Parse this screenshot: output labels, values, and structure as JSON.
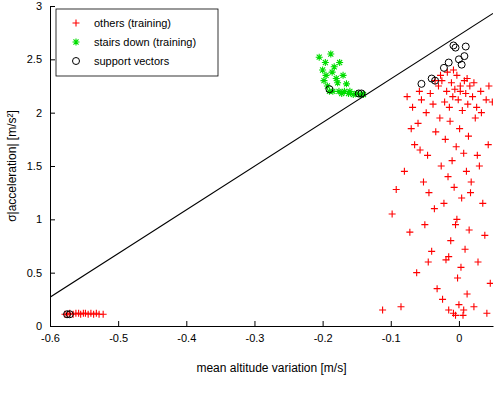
{
  "chart_data": {
    "type": "scatter",
    "xlabel": "mean altitude variation [m/s]",
    "ylabel": "σ|acceleration| [m/s²]",
    "xlim": [
      -0.6,
      0.05
    ],
    "ylim": [
      0,
      3
    ],
    "xticks": [
      -0.6,
      -0.5,
      -0.4,
      -0.3,
      -0.2,
      -0.1,
      0
    ],
    "yticks": [
      0,
      0.5,
      1,
      1.5,
      2,
      2.5,
      3
    ],
    "legend": "upper left",
    "series": [
      {
        "name": "others (training)",
        "color": "#ff0000",
        "marker": "plus",
        "x": [
          -0.578,
          -0.574,
          -0.571,
          -0.566,
          -0.562,
          -0.558,
          -0.555,
          -0.551,
          -0.548,
          -0.544,
          -0.54,
          -0.536,
          -0.532,
          -0.528,
          -0.522,
          -0.098,
          -0.092,
          -0.085,
          -0.08,
          -0.076,
          -0.072,
          -0.068,
          -0.065,
          -0.062,
          -0.06,
          -0.058,
          -0.055,
          -0.052,
          -0.05,
          -0.048,
          -0.046,
          -0.044,
          -0.042,
          -0.04,
          -0.038,
          -0.036,
          -0.034,
          -0.032,
          -0.03,
          -0.028,
          -0.026,
          -0.025,
          -0.024,
          -0.022,
          -0.021,
          -0.02,
          -0.019,
          -0.018,
          -0.016,
          -0.015,
          -0.014,
          -0.013,
          -0.012,
          -0.011,
          -0.01,
          -0.009,
          -0.008,
          -0.007,
          -0.006,
          -0.005,
          -0.004,
          -0.003,
          -0.002,
          -0.001,
          0,
          0.001,
          0.002,
          0.003,
          0.004,
          0.005,
          0.006,
          0.007,
          0.008,
          0.009,
          0.01,
          0.011,
          0.012,
          0.013,
          0.014,
          0.015,
          0.016,
          0.018,
          0.02,
          0.022,
          0.024,
          0.026,
          0.028,
          0.03,
          0.032,
          0.035,
          0.038,
          0.04,
          0.043,
          0.046,
          0.049,
          -0.035,
          -0.027,
          -0.017,
          -0.008,
          0.002,
          0.012,
          0.022,
          -0.045,
          -0.003,
          0.007,
          -0.112,
          -0.07,
          -0.057,
          0.033,
          0.041,
          -0.015,
          0.017,
          -0.005,
          0.027,
          0.044
        ],
        "values": [
          0.11,
          0.11,
          0.12,
          0.11,
          0.12,
          0.12,
          0.11,
          0.12,
          0.12,
          0.11,
          0.12,
          0.11,
          0.12,
          0.11,
          0.11,
          1.05,
          1.28,
          0.18,
          1.45,
          2.15,
          0.88,
          2.05,
          1.7,
          0.5,
          1.9,
          2.2,
          2.12,
          1.35,
          0.95,
          2.0,
          1.6,
          1.25,
          2.18,
          0.7,
          2.08,
          1.1,
          1.82,
          0.35,
          2.25,
          1.95,
          1.5,
          2.3,
          0.25,
          1.15,
          2.1,
          1.75,
          0.62,
          2.2,
          1.4,
          0.15,
          2.05,
          1.92,
          0.8,
          2.28,
          1.55,
          2.15,
          0.12,
          1.3,
          2.22,
          0.95,
          1.68,
          2.35,
          0.45,
          2.12,
          0.2,
          1.85,
          2.25,
          0.55,
          1.2,
          2.02,
          0.1,
          1.62,
          2.3,
          0.72,
          2.18,
          1.45,
          0.3,
          2.08,
          1.78,
          0.9,
          2.25,
          1.35,
          2.15,
          0.18,
          1.95,
          2.05,
          0.6,
          1.5,
          2.2,
          1.15,
          0.85,
          2.12,
          1.7,
          0.4,
          2.1,
          2.3,
          2.35,
          2.38,
          2.4,
          2.2,
          2.32,
          2.28,
          0.6,
          1.0,
          0.15,
          0.15,
          1.85,
          1.65,
          2.0,
          0.12,
          0.65,
          1.25,
          0.1,
          1.6,
          2.25
        ]
      },
      {
        "name": "stairs down (training)",
        "color": "#00dd00",
        "marker": "asterisk",
        "x": [
          -0.205,
          -0.2,
          -0.198,
          -0.196,
          -0.195,
          -0.193,
          -0.19,
          -0.188,
          -0.186,
          -0.185,
          -0.183,
          -0.18,
          -0.178,
          -0.176,
          -0.175,
          -0.172,
          -0.17,
          -0.168,
          -0.165,
          -0.162,
          -0.16,
          -0.155,
          -0.15,
          -0.145,
          -0.14
        ],
        "values": [
          2.52,
          2.4,
          2.3,
          2.47,
          2.35,
          2.25,
          2.2,
          2.55,
          2.38,
          2.2,
          2.43,
          2.32,
          2.28,
          2.2,
          2.47,
          2.18,
          2.35,
          2.2,
          2.27,
          2.18,
          2.2,
          2.17,
          2.18,
          2.17,
          2.17
        ]
      },
      {
        "name": "support vectors",
        "color": "#000000",
        "marker": "circle",
        "x": [
          -0.575,
          -0.571,
          -0.19,
          -0.147,
          -0.143,
          -0.055,
          -0.04,
          -0.035,
          -0.022,
          -0.015,
          -0.008,
          -0.005,
          0,
          0.004,
          0.008,
          0.01
        ],
        "values": [
          0.11,
          0.11,
          2.22,
          2.18,
          2.18,
          2.27,
          2.32,
          2.3,
          2.42,
          2.47,
          2.63,
          2.61,
          2.5,
          2.45,
          2.53,
          2.62
        ]
      },
      {
        "type": "line",
        "color": "#000000",
        "line_style": "solid",
        "x": [
          -0.6,
          0.05
        ],
        "values": [
          0.27,
          2.93
        ]
      }
    ]
  }
}
